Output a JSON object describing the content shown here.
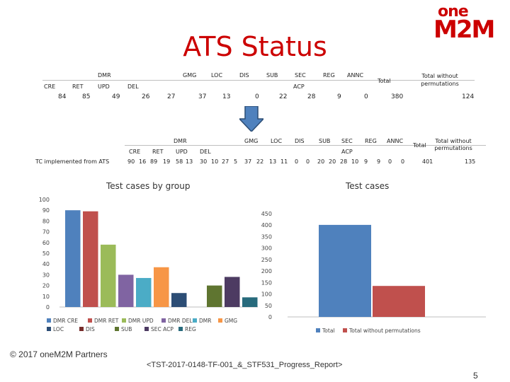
{
  "title": "ATS Status",
  "logo": {
    "line1": "one",
    "line2": "M2M"
  },
  "table1": {
    "group_labels": [
      {
        "text": "DMR",
        "key": "dmr"
      },
      {
        "text": "GMG",
        "key": "gmg"
      },
      {
        "text": "LOC",
        "key": "loc"
      },
      {
        "text": "DIS",
        "key": "dis"
      },
      {
        "text": "SUB",
        "key": "sub"
      },
      {
        "text": "SEC",
        "key": "sec"
      },
      {
        "text": "REG",
        "key": "reg"
      },
      {
        "text": "ANNC",
        "key": "annc"
      },
      {
        "text": "Total",
        "key": "total"
      },
      {
        "text": "Total without permutations",
        "key": "total-wo"
      }
    ],
    "sub_labels": [
      "CRE",
      "RET",
      "UPD",
      "DEL",
      "ACP"
    ],
    "values": [
      "84",
      "85",
      "49",
      "26",
      "27",
      "37",
      "13",
      "0",
      "22",
      "28",
      "9",
      "0",
      "380",
      "124"
    ]
  },
  "table2": {
    "group_labels": [
      "DMR",
      "GMG",
      "LOC",
      "DIS",
      "SUB",
      "SEC",
      "REG",
      "ANNC",
      "Total",
      "Total without permutations"
    ],
    "sub_labels": [
      "CRE",
      "RET",
      "UPD",
      "DEL",
      "ACP"
    ],
    "row_label": "TC implemented from ATS",
    "values": [
      "90",
      "16",
      "89",
      "19",
      "58",
      "13",
      "30",
      "10",
      "27",
      "5",
      "37",
      "22",
      "13",
      "11",
      "0",
      "0",
      "20",
      "20",
      "28",
      "10",
      "9",
      "9",
      "0",
      "0",
      "401",
      "135"
    ]
  },
  "chart_data": [
    {
      "type": "bar",
      "title": "Test cases by group",
      "categories": [
        "DMR CRE",
        "DMR RET",
        "DMR UPD",
        "DMR DEL",
        "DMR",
        "GMG",
        "LOC",
        "DIS",
        "SUB",
        "SEC ACP",
        "REG"
      ],
      "values": [
        90,
        89,
        58,
        30,
        27,
        37,
        13,
        0,
        20,
        28,
        9
      ],
      "colors": [
        "#4f81bd",
        "#c0504d",
        "#9bbb59",
        "#8064a2",
        "#4bacc6",
        "#f79646",
        "#2c4d75",
        "#772c2a",
        "#5f7530",
        "#4d3b62",
        "#276a7c"
      ],
      "legend": [
        "DMR CRE",
        "DMR RET",
        "DMR UPD",
        "DMR DEL",
        "DMR",
        "GMG",
        "LOC",
        "DIS",
        "SUB",
        "SEC ACP",
        "REG"
      ],
      "ylim": [
        0,
        100
      ],
      "yticks": [
        0,
        10,
        20,
        30,
        40,
        50,
        60,
        70,
        80,
        90,
        100
      ],
      "grid": false,
      "legend_position": "bottom"
    },
    {
      "type": "bar",
      "title": "Test cases",
      "categories": [
        "Total",
        "Total without permutations"
      ],
      "values": [
        401,
        135
      ],
      "colors": [
        "#4f81bd",
        "#c0504d"
      ],
      "legend": [
        "Total",
        "Total without permutations"
      ],
      "ylim": [
        0,
        450
      ],
      "yticks": [
        0,
        50,
        100,
        150,
        200,
        250,
        300,
        350,
        400,
        450
      ],
      "grid": false,
      "legend_position": "bottom"
    }
  ],
  "footer": {
    "copyright": "© 2017 oneM2M Partners",
    "doc_ref": "<TST-2017-0148-TF-001_&_STF531_Progress_Report>",
    "page": "5"
  },
  "colors": {
    "accent": "#cc0000",
    "arrow": "#4f81bd"
  },
  "icons": {
    "arrow": "down-arrow-icon"
  }
}
